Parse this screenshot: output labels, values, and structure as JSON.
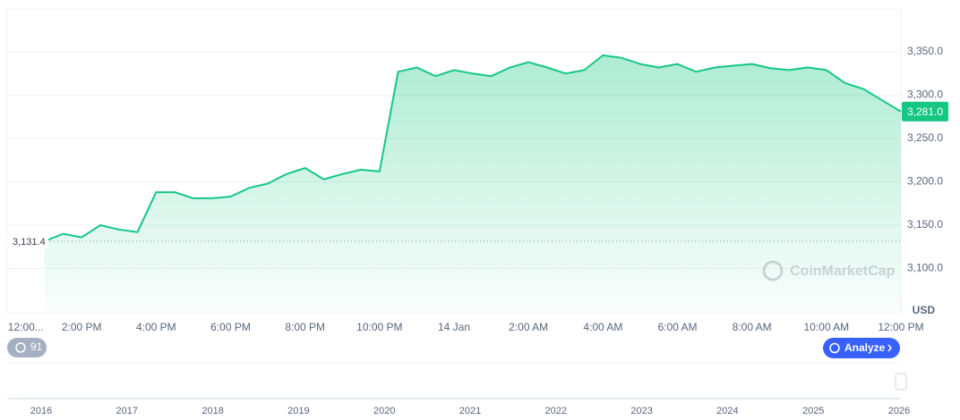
{
  "chart_data": {
    "type": "line",
    "x": [
      1.0,
      1.5,
      2.0,
      2.5,
      3.0,
      3.5,
      4.0,
      4.5,
      5.0,
      5.5,
      6.0,
      6.5,
      7.0,
      7.5,
      8.0,
      8.5,
      9.0,
      9.5,
      10.0,
      10.5,
      11.0,
      11.5,
      12.0,
      12.5,
      13.0,
      13.5,
      14.0,
      14.5,
      15.0,
      15.5,
      16.0,
      16.5,
      17.0,
      17.5,
      18.0,
      18.5,
      19.0,
      19.5,
      20.0,
      20.5,
      21.0,
      21.5,
      22.0,
      22.5,
      23.0,
      23.5,
      24.0
    ],
    "series": [
      {
        "color": "#16c784",
        "values": [
          3131.4,
          3140,
          3136,
          3150,
          3145,
          3142,
          3188,
          3188,
          3181,
          3181,
          3183,
          3193,
          3198,
          3209,
          3216,
          3203,
          3209,
          3214,
          3212,
          3327,
          3332,
          3322,
          3329,
          3325,
          3322,
          3332,
          3338,
          3332,
          3325,
          3329,
          3346,
          3343,
          3336,
          3332,
          3336,
          3327,
          3332,
          3334,
          3336,
          3331,
          3329,
          3332,
          3329,
          3314,
          3307,
          3294,
          3281
        ]
      }
    ],
    "xlim": [
      0,
      24
    ],
    "xticks": [
      {
        "value": 0.5,
        "label": "12:00..."
      },
      {
        "value": 2,
        "label": "2:00 PM"
      },
      {
        "value": 4,
        "label": "4:00 PM"
      },
      {
        "value": 6,
        "label": "6:00 PM"
      },
      {
        "value": 8,
        "label": "8:00 PM"
      },
      {
        "value": 10,
        "label": "10:00 PM"
      },
      {
        "value": 12,
        "label": "14 Jan"
      },
      {
        "value": 14,
        "label": "2:00 AM"
      },
      {
        "value": 16,
        "label": "4:00 AM"
      },
      {
        "value": 18,
        "label": "6:00 AM"
      },
      {
        "value": 20,
        "label": "8:00 AM"
      },
      {
        "value": 22,
        "label": "10:00 AM"
      },
      {
        "value": 24,
        "label": "12:00 PM"
      }
    ],
    "ylim": [
      3050,
      3400
    ],
    "yticks": [
      {
        "value": 3100,
        "label": "3,100.0"
      },
      {
        "value": 3150,
        "label": "3,150.0"
      },
      {
        "value": 3200,
        "label": "3,200.0"
      },
      {
        "value": 3250,
        "label": "3,250.0"
      },
      {
        "value": 3300,
        "label": "3,300.0"
      },
      {
        "value": 3350,
        "label": "3,350.0"
      }
    ],
    "grid": true,
    "reference": {
      "value": 3131.4,
      "label": "3,131.4"
    },
    "current_price": {
      "value": 3281,
      "label": "3,281.0"
    },
    "currency": "USD",
    "watermark": "CoinMarketCap",
    "history_badge": "91",
    "analyze_button": "Analyze",
    "navigator_years": [
      "2016",
      "2017",
      "2018",
      "2019",
      "2020",
      "2021",
      "2022",
      "2023",
      "2024",
      "2025",
      "2026"
    ]
  }
}
